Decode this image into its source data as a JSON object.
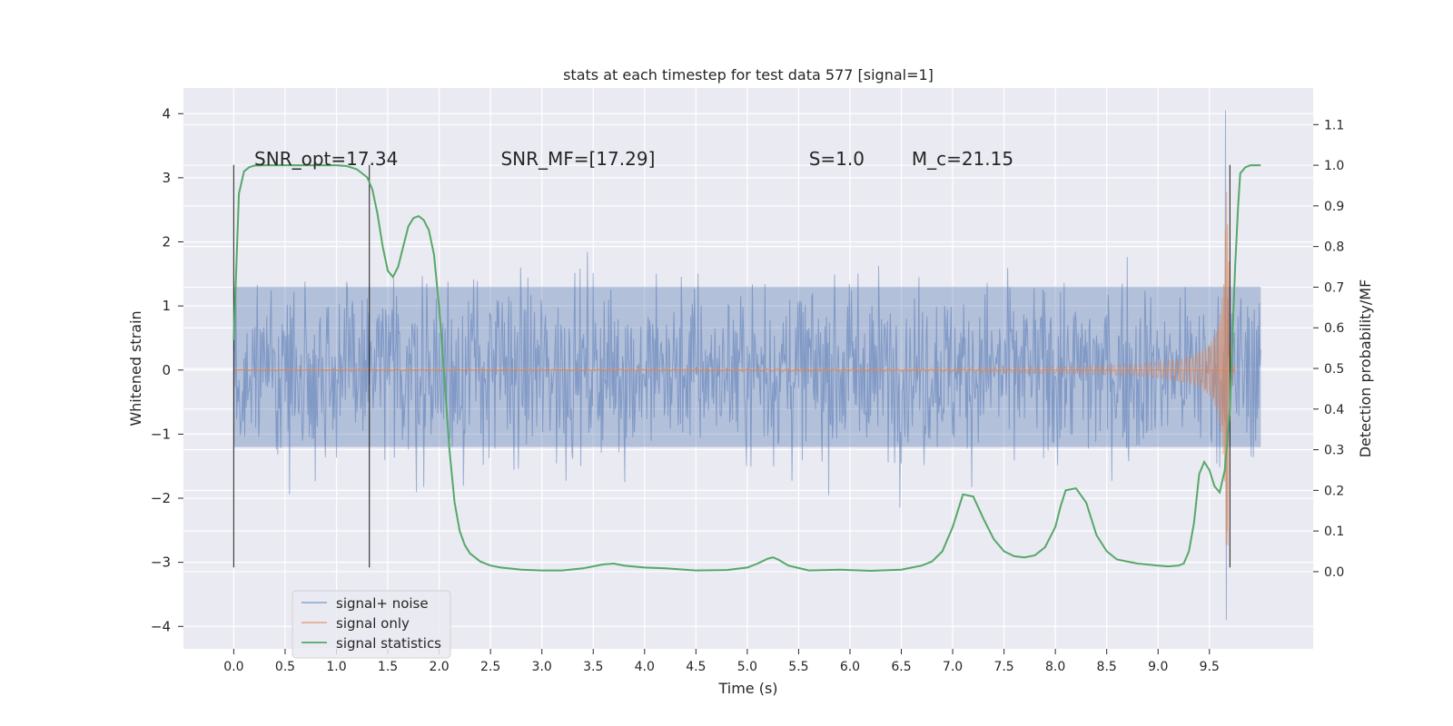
{
  "chart_data": {
    "type": "line",
    "title": "stats at each timestep for test data 577 [signal=1]",
    "xlabel": "Time (s)",
    "ylabel_left": "Whitened strain",
    "ylabel_right": "Detection probability/MF",
    "xlim": [
      -0.49,
      10.51
    ],
    "ylim_left": [
      -4.35,
      4.4
    ],
    "ylim_right": [
      -0.19,
      1.19
    ],
    "grid": true,
    "legend_placement": "lower-left",
    "x_ticks": [
      0.0,
      0.5,
      1.0,
      1.5,
      2.0,
      2.5,
      3.0,
      3.5,
      4.0,
      4.5,
      5.0,
      5.5,
      6.0,
      6.5,
      7.0,
      7.5,
      8.0,
      8.5,
      9.0,
      9.5
    ],
    "x_tick_labels": [
      "0.0",
      "0.5",
      "1.0",
      "1.5",
      "2.0",
      "2.5",
      "3.0",
      "3.5",
      "4.0",
      "4.5",
      "5.0",
      "5.5",
      "6.0",
      "6.5",
      "7.0",
      "7.5",
      "8.0",
      "8.5",
      "9.0",
      "9.5"
    ],
    "y_left_ticks": [
      -4,
      -3,
      -2,
      -1,
      0,
      1,
      2,
      3,
      4
    ],
    "y_left_tick_labels": [
      "−4",
      "−3",
      "−2",
      "−1",
      "0",
      "1",
      "2",
      "3",
      "4"
    ],
    "y_right_ticks": [
      0.0,
      0.1,
      0.2,
      0.3,
      0.4,
      0.5,
      0.6,
      0.7,
      0.8,
      0.9,
      1.0,
      1.1
    ],
    "y_right_tick_labels": [
      "0.0",
      "0.1",
      "0.2",
      "0.3",
      "0.4",
      "0.5",
      "0.6",
      "0.7",
      "0.8",
      "0.9",
      "1.0",
      "1.1"
    ],
    "annotations": [
      {
        "text": "SNR_opt=17.34",
        "x": 0.2,
        "y": 3.2
      },
      {
        "text": "SNR_MF=[17.29]",
        "x": 2.6,
        "y": 3.2
      },
      {
        "text": "S=1.0",
        "x": 5.6,
        "y": 3.2
      },
      {
        "text": "M_c=21.15",
        "x": 6.6,
        "y": 3.2
      }
    ],
    "vertical_markers": [
      {
        "x": 0.0,
        "y_range": [
          -3.08,
          3.2
        ]
      },
      {
        "x": 1.32,
        "y_range": [
          -3.08,
          3.2
        ]
      },
      {
        "x": 9.7,
        "y_range": [
          -3.08,
          3.2
        ]
      }
    ],
    "series": [
      {
        "name": "signal+ noise",
        "color": "#4c72b0",
        "noise": {
          "x_start": 0.0,
          "x_end": 10.0,
          "dense_band": [
            -1.2,
            1.3
          ],
          "typical_peak": 2.3,
          "max": 4.05,
          "min": -3.9
        }
      },
      {
        "name": "signal only",
        "color": "#dd8452",
        "chirp": {
          "x_start": 0.0,
          "merger_x": 9.68,
          "peak_amplitude": 3.2,
          "min": -3.5,
          "ringdown_end": 9.75
        }
      },
      {
        "name": "signal statistics",
        "color": "#55a868",
        "axis": "right",
        "x": [
          0.0,
          0.05,
          0.1,
          0.15,
          0.2,
          0.3,
          0.5,
          0.8,
          1.0,
          1.1,
          1.2,
          1.3,
          1.35,
          1.4,
          1.45,
          1.5,
          1.55,
          1.6,
          1.65,
          1.7,
          1.75,
          1.8,
          1.85,
          1.9,
          1.95,
          2.0,
          2.05,
          2.1,
          2.15,
          2.2,
          2.25,
          2.3,
          2.4,
          2.5,
          2.6,
          2.8,
          3.0,
          3.2,
          3.4,
          3.6,
          3.7,
          3.8,
          4.0,
          4.2,
          4.5,
          4.8,
          5.0,
          5.1,
          5.2,
          5.25,
          5.3,
          5.4,
          5.6,
          5.9,
          6.2,
          6.5,
          6.7,
          6.8,
          6.9,
          7.0,
          7.1,
          7.2,
          7.3,
          7.4,
          7.5,
          7.6,
          7.7,
          7.8,
          7.9,
          8.0,
          8.05,
          8.1,
          8.2,
          8.3,
          8.4,
          8.5,
          8.6,
          8.8,
          9.0,
          9.1,
          9.2,
          9.25,
          9.3,
          9.35,
          9.4,
          9.45,
          9.5,
          9.55,
          9.6,
          9.65,
          9.7,
          9.72,
          9.75,
          9.78,
          9.8,
          9.85,
          9.9,
          9.95,
          10.0
        ],
        "values": [
          0.57,
          0.93,
          0.985,
          0.995,
          0.999,
          1.0,
          1.0,
          1.0,
          1.0,
          0.998,
          0.99,
          0.97,
          0.94,
          0.88,
          0.8,
          0.74,
          0.725,
          0.75,
          0.8,
          0.85,
          0.87,
          0.875,
          0.865,
          0.84,
          0.78,
          0.65,
          0.48,
          0.3,
          0.17,
          0.1,
          0.065,
          0.045,
          0.025,
          0.015,
          0.01,
          0.005,
          0.003,
          0.003,
          0.008,
          0.018,
          0.02,
          0.015,
          0.01,
          0.008,
          0.003,
          0.004,
          0.01,
          0.02,
          0.032,
          0.035,
          0.03,
          0.015,
          0.003,
          0.005,
          0.002,
          0.005,
          0.015,
          0.025,
          0.05,
          0.11,
          0.19,
          0.185,
          0.13,
          0.08,
          0.05,
          0.038,
          0.035,
          0.04,
          0.06,
          0.11,
          0.16,
          0.2,
          0.205,
          0.17,
          0.09,
          0.05,
          0.03,
          0.02,
          0.015,
          0.013,
          0.015,
          0.02,
          0.05,
          0.12,
          0.24,
          0.27,
          0.25,
          0.21,
          0.195,
          0.25,
          0.4,
          0.55,
          0.75,
          0.9,
          0.98,
          0.995,
          1.0,
          1.0,
          1.0
        ]
      }
    ]
  }
}
